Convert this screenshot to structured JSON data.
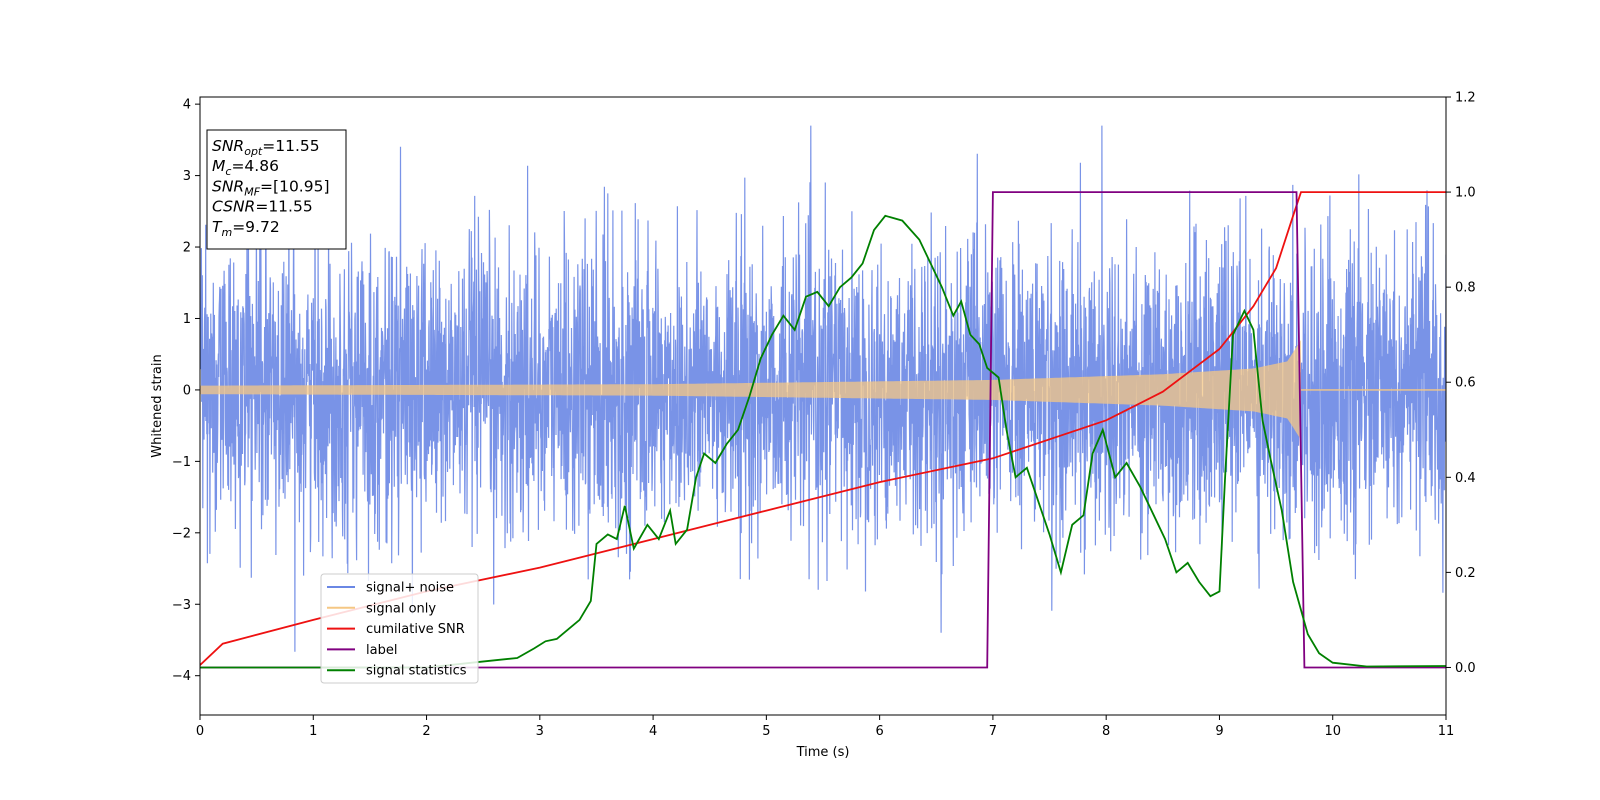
{
  "chart_data": {
    "type": "line",
    "title": "",
    "xlabel": "Time (s)",
    "ylabel": "Whitened strain",
    "xlim": [
      0,
      11
    ],
    "ylim_left": [
      -4.55,
      4.1
    ],
    "ylim_right": [
      -0.1,
      1.2
    ],
    "x_ticks": [
      "0",
      "1",
      "2",
      "3",
      "4",
      "5",
      "6",
      "7",
      "8",
      "9",
      "10",
      "11"
    ],
    "y_ticks_left": [
      "4",
      "3",
      "2",
      "1",
      "0",
      "−1",
      "−2",
      "−3",
      "−4"
    ],
    "y_ticks_right": [
      "1.2",
      "1.0",
      "0.8",
      "0.6",
      "0.4",
      "0.2",
      "0.0"
    ],
    "grid": false,
    "legend_position": "lower-left",
    "annotation": {
      "lines": [
        {
          "base": "SNR",
          "sub": "opt",
          "value": "=11.55"
        },
        {
          "base": "M",
          "sub": "c",
          "value": "=4.86"
        },
        {
          "base": "SNR",
          "sub": "MF",
          "value": "=[10.95]"
        },
        {
          "base": "CSNR",
          "sub": "",
          "value": "=11.55"
        },
        {
          "base": "T",
          "sub": "m",
          "value": "=9.72"
        }
      ]
    },
    "series": [
      {
        "name": "signal+ noise",
        "axis": "left",
        "color": "#6a87e4",
        "description_values": {
          "noise_sigma": 1.0,
          "max_abs": 3.7
        }
      },
      {
        "name": "signal only",
        "axis": "left",
        "color": "#f5c784",
        "amplitude": [
          [
            0,
            0.06
          ],
          [
            4,
            0.08
          ],
          [
            7,
            0.14
          ],
          [
            8.5,
            0.22
          ],
          [
            9.3,
            0.3
          ],
          [
            9.6,
            0.4
          ],
          [
            9.72,
            0.7
          ]
        ],
        "merger_time": 9.72
      },
      {
        "name": "cumilative SNR",
        "axis": "right",
        "color": "#ee1111",
        "points": [
          [
            0,
            0.005
          ],
          [
            0.2,
            0.05
          ],
          [
            1,
            0.1
          ],
          [
            2,
            0.16
          ],
          [
            3,
            0.21
          ],
          [
            4,
            0.27
          ],
          [
            5,
            0.33
          ],
          [
            6,
            0.39
          ],
          [
            7,
            0.44
          ],
          [
            8,
            0.52
          ],
          [
            8.5,
            0.58
          ],
          [
            9,
            0.67
          ],
          [
            9.3,
            0.76
          ],
          [
            9.5,
            0.84
          ],
          [
            9.65,
            0.95
          ],
          [
            9.72,
            1.0
          ],
          [
            11,
            1.0
          ]
        ]
      },
      {
        "name": "label",
        "axis": "right",
        "color": "#800080",
        "points": [
          [
            0,
            0
          ],
          [
            6.95,
            0
          ],
          [
            7.0,
            1.0
          ],
          [
            9.68,
            1.0
          ],
          [
            9.75,
            0
          ],
          [
            11,
            0
          ]
        ]
      },
      {
        "name": "signal statistics",
        "axis": "right",
        "color": "#008000",
        "points": [
          [
            0,
            0.0
          ],
          [
            2.0,
            0.0
          ],
          [
            2.4,
            0.01
          ],
          [
            2.6,
            0.015
          ],
          [
            2.8,
            0.02
          ],
          [
            2.95,
            0.04
          ],
          [
            3.05,
            0.055
          ],
          [
            3.15,
            0.06
          ],
          [
            3.25,
            0.08
          ],
          [
            3.35,
            0.1
          ],
          [
            3.45,
            0.14
          ],
          [
            3.5,
            0.26
          ],
          [
            3.6,
            0.28
          ],
          [
            3.68,
            0.27
          ],
          [
            3.75,
            0.34
          ],
          [
            3.83,
            0.25
          ],
          [
            3.95,
            0.3
          ],
          [
            4.05,
            0.27
          ],
          [
            4.15,
            0.33
          ],
          [
            4.2,
            0.26
          ],
          [
            4.3,
            0.29
          ],
          [
            4.38,
            0.4
          ],
          [
            4.45,
            0.45
          ],
          [
            4.55,
            0.43
          ],
          [
            4.65,
            0.47
          ],
          [
            4.75,
            0.5
          ],
          [
            4.85,
            0.57
          ],
          [
            4.95,
            0.65
          ],
          [
            5.05,
            0.7
          ],
          [
            5.15,
            0.74
          ],
          [
            5.25,
            0.71
          ],
          [
            5.35,
            0.78
          ],
          [
            5.45,
            0.79
          ],
          [
            5.55,
            0.76
          ],
          [
            5.65,
            0.8
          ],
          [
            5.75,
            0.82
          ],
          [
            5.85,
            0.85
          ],
          [
            5.95,
            0.92
          ],
          [
            6.05,
            0.95
          ],
          [
            6.2,
            0.94
          ],
          [
            6.35,
            0.9
          ],
          [
            6.45,
            0.85
          ],
          [
            6.55,
            0.8
          ],
          [
            6.65,
            0.74
          ],
          [
            6.72,
            0.77
          ],
          [
            6.8,
            0.7
          ],
          [
            6.88,
            0.68
          ],
          [
            6.95,
            0.63
          ],
          [
            7.05,
            0.61
          ],
          [
            7.12,
            0.5
          ],
          [
            7.2,
            0.4
          ],
          [
            7.3,
            0.42
          ],
          [
            7.4,
            0.35
          ],
          [
            7.5,
            0.28
          ],
          [
            7.6,
            0.2
          ],
          [
            7.7,
            0.3
          ],
          [
            7.8,
            0.32
          ],
          [
            7.88,
            0.45
          ],
          [
            7.97,
            0.5
          ],
          [
            8.08,
            0.4
          ],
          [
            8.18,
            0.43
          ],
          [
            8.3,
            0.38
          ],
          [
            8.42,
            0.32
          ],
          [
            8.52,
            0.27
          ],
          [
            8.62,
            0.2
          ],
          [
            8.72,
            0.22
          ],
          [
            8.82,
            0.18
          ],
          [
            8.92,
            0.15
          ],
          [
            9.0,
            0.16
          ],
          [
            9.05,
            0.4
          ],
          [
            9.12,
            0.7
          ],
          [
            9.22,
            0.75
          ],
          [
            9.3,
            0.71
          ],
          [
            9.38,
            0.52
          ],
          [
            9.45,
            0.44
          ],
          [
            9.55,
            0.33
          ],
          [
            9.65,
            0.18
          ],
          [
            9.78,
            0.07
          ],
          [
            9.88,
            0.03
          ],
          [
            10.0,
            0.01
          ],
          [
            10.3,
            0.002
          ],
          [
            11,
            0.003
          ]
        ]
      }
    ]
  }
}
